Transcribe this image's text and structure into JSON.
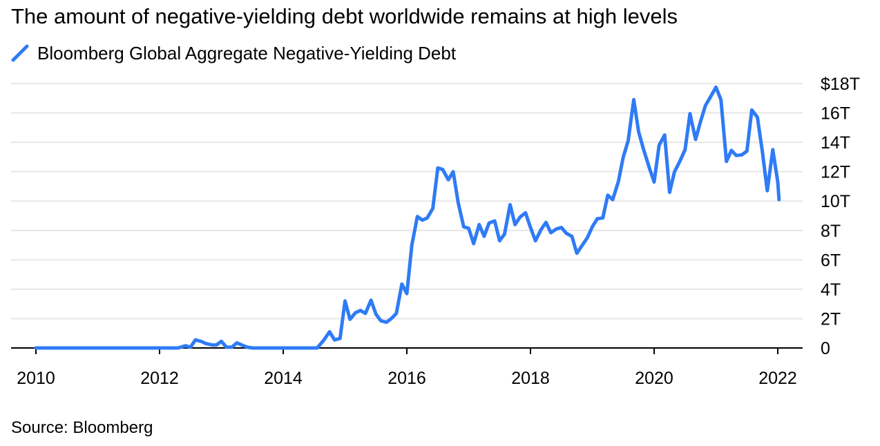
{
  "title": "The amount of negative-yielding debt worldwide remains at high levels",
  "source": "Source: Bloomberg",
  "colors": {
    "line": "#2f7bf5",
    "grid": "#e6e6e6",
    "axis": "#000000"
  },
  "chart_data": {
    "type": "line",
    "title": "The amount of negative-yielding debt worldwide remains at high levels",
    "xlabel": "",
    "ylabel": "",
    "xlim": [
      2010,
      2022
    ],
    "ylim": [
      0,
      18
    ],
    "grid": true,
    "legend_position": "top-left",
    "x_ticks": [
      {
        "value": 2010,
        "label": "2010"
      },
      {
        "value": 2012,
        "label": "2012"
      },
      {
        "value": 2014,
        "label": "2014"
      },
      {
        "value": 2016,
        "label": "2016"
      },
      {
        "value": 2018,
        "label": "2018"
      },
      {
        "value": 2020,
        "label": "2020"
      },
      {
        "value": 2022,
        "label": "2022"
      }
    ],
    "y_ticks": [
      {
        "value": 0,
        "label": "0"
      },
      {
        "value": 2,
        "label": "2T"
      },
      {
        "value": 4,
        "label": "4T"
      },
      {
        "value": 6,
        "label": "6T"
      },
      {
        "value": 8,
        "label": "8T"
      },
      {
        "value": 10,
        "label": "10T"
      },
      {
        "value": 12,
        "label": "12T"
      },
      {
        "value": 14,
        "label": "14T"
      },
      {
        "value": 16,
        "label": "16T"
      },
      {
        "value": 18,
        "label": "$18T"
      }
    ],
    "series": [
      {
        "name": "Bloomberg Global Aggregate Negative-Yielding Debt",
        "color": "#2f7bf5",
        "points": [
          [
            2010.0,
            0
          ],
          [
            2011.0,
            0
          ],
          [
            2012.0,
            0
          ],
          [
            2012.3,
            0
          ],
          [
            2012.42,
            0.15
          ],
          [
            2012.5,
            0.05
          ],
          [
            2012.58,
            0.55
          ],
          [
            2012.67,
            0.45
          ],
          [
            2012.75,
            0.3
          ],
          [
            2012.85,
            0.2
          ],
          [
            2012.92,
            0.2
          ],
          [
            2013.0,
            0.45
          ],
          [
            2013.08,
            0.05
          ],
          [
            2013.17,
            0.05
          ],
          [
            2013.25,
            0.35
          ],
          [
            2013.33,
            0.2
          ],
          [
            2013.42,
            0.05
          ],
          [
            2013.5,
            0
          ],
          [
            2014.0,
            0
          ],
          [
            2014.55,
            0
          ],
          [
            2014.65,
            0.5
          ],
          [
            2014.75,
            1.1
          ],
          [
            2014.83,
            0.55
          ],
          [
            2014.92,
            0.65
          ],
          [
            2015.0,
            3.2
          ],
          [
            2015.08,
            1.95
          ],
          [
            2015.17,
            2.4
          ],
          [
            2015.25,
            2.55
          ],
          [
            2015.33,
            2.35
          ],
          [
            2015.42,
            3.25
          ],
          [
            2015.5,
            2.3
          ],
          [
            2015.58,
            1.85
          ],
          [
            2015.67,
            1.75
          ],
          [
            2015.75,
            2.0
          ],
          [
            2015.83,
            2.35
          ],
          [
            2015.92,
            4.35
          ],
          [
            2016.0,
            3.7
          ],
          [
            2016.08,
            7.0
          ],
          [
            2016.17,
            8.95
          ],
          [
            2016.25,
            8.7
          ],
          [
            2016.33,
            8.85
          ],
          [
            2016.42,
            9.5
          ],
          [
            2016.5,
            12.25
          ],
          [
            2016.58,
            12.15
          ],
          [
            2016.67,
            11.45
          ],
          [
            2016.75,
            12.0
          ],
          [
            2016.83,
            9.9
          ],
          [
            2016.92,
            8.25
          ],
          [
            2017.0,
            8.15
          ],
          [
            2017.08,
            7.1
          ],
          [
            2017.17,
            8.4
          ],
          [
            2017.25,
            7.6
          ],
          [
            2017.33,
            8.5
          ],
          [
            2017.42,
            8.65
          ],
          [
            2017.5,
            7.3
          ],
          [
            2017.58,
            7.75
          ],
          [
            2017.67,
            9.75
          ],
          [
            2017.75,
            8.4
          ],
          [
            2017.83,
            8.9
          ],
          [
            2017.92,
            9.2
          ],
          [
            2018.0,
            8.2
          ],
          [
            2018.08,
            7.3
          ],
          [
            2018.17,
            8.05
          ],
          [
            2018.25,
            8.55
          ],
          [
            2018.33,
            7.85
          ],
          [
            2018.42,
            8.1
          ],
          [
            2018.5,
            8.2
          ],
          [
            2018.58,
            7.8
          ],
          [
            2018.67,
            7.6
          ],
          [
            2018.75,
            6.45
          ],
          [
            2018.83,
            6.95
          ],
          [
            2018.92,
            7.5
          ],
          [
            2019.0,
            8.25
          ],
          [
            2019.08,
            8.8
          ],
          [
            2019.17,
            8.85
          ],
          [
            2019.25,
            10.4
          ],
          [
            2019.33,
            10.1
          ],
          [
            2019.42,
            11.3
          ],
          [
            2019.5,
            13.0
          ],
          [
            2019.58,
            14.1
          ],
          [
            2019.67,
            16.9
          ],
          [
            2019.75,
            14.7
          ],
          [
            2019.83,
            13.5
          ],
          [
            2019.92,
            12.3
          ],
          [
            2020.0,
            11.3
          ],
          [
            2020.08,
            13.8
          ],
          [
            2020.17,
            14.5
          ],
          [
            2020.25,
            10.6
          ],
          [
            2020.33,
            12.0
          ],
          [
            2020.42,
            12.75
          ],
          [
            2020.5,
            13.5
          ],
          [
            2020.58,
            15.95
          ],
          [
            2020.67,
            14.2
          ],
          [
            2020.75,
            15.4
          ],
          [
            2020.83,
            16.5
          ],
          [
            2020.92,
            17.15
          ],
          [
            2021.0,
            17.75
          ],
          [
            2021.08,
            16.9
          ],
          [
            2021.17,
            12.7
          ],
          [
            2021.25,
            13.45
          ],
          [
            2021.33,
            13.1
          ],
          [
            2021.42,
            13.15
          ],
          [
            2021.5,
            13.4
          ],
          [
            2021.58,
            16.2
          ],
          [
            2021.67,
            15.7
          ],
          [
            2021.75,
            13.4
          ],
          [
            2021.83,
            10.7
          ],
          [
            2021.92,
            13.5
          ],
          [
            2022.0,
            11.3
          ],
          [
            2022.02,
            10.1
          ]
        ]
      }
    ]
  }
}
